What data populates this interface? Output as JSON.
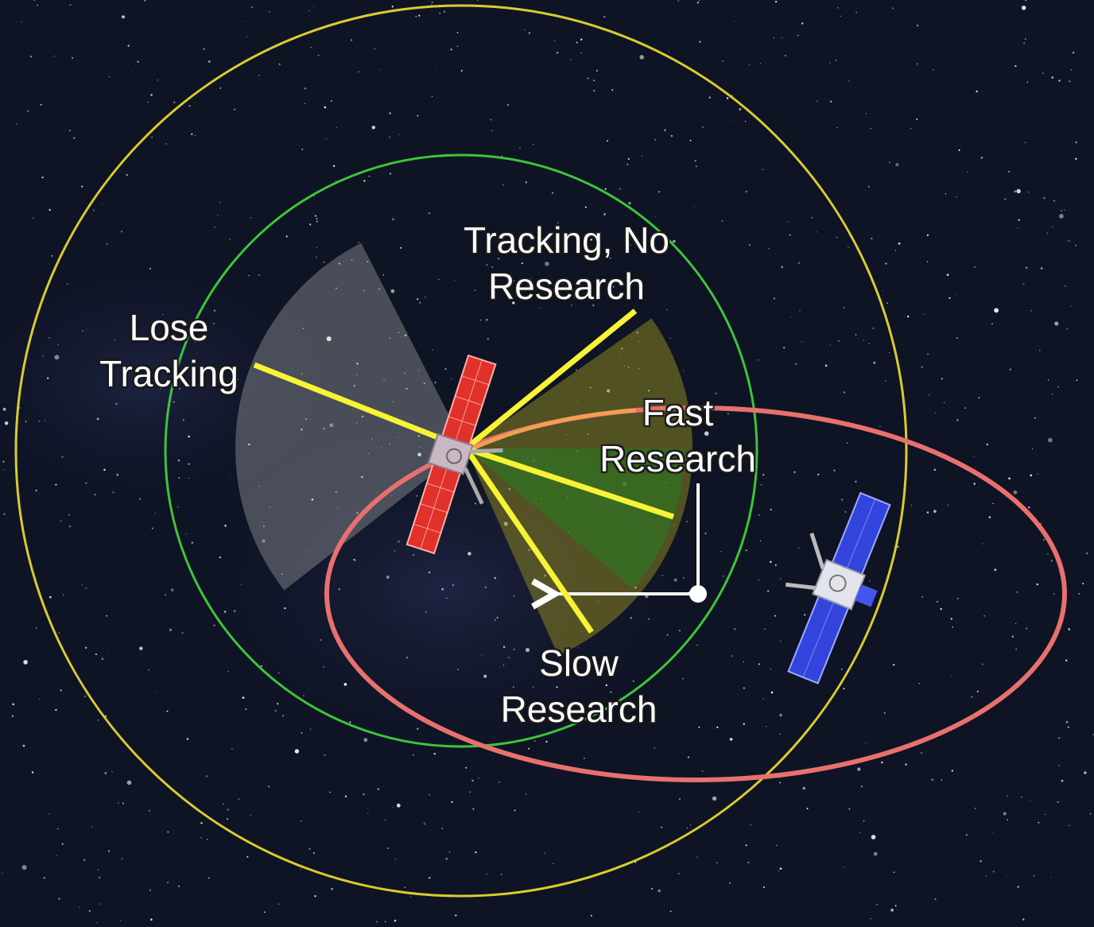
{
  "labels": {
    "tracking_no_research": {
      "line1": "Tracking, No",
      "line2": "Research"
    },
    "lose_tracking": {
      "line1": "Lose",
      "line2": "Tracking"
    },
    "fast_research": {
      "line1": "Fast",
      "line2": "Research"
    },
    "slow_research": {
      "line1": "Slow",
      "line2": "Research"
    }
  },
  "colors": {
    "space": "#0e1424",
    "outer_ring": "#d9cc2e",
    "inner_ring": "#3ec43a",
    "orbit_path": "#e8706d",
    "pointer_line": "#f7f335",
    "lose_tracking_zone": "#c8c8c8",
    "slow_research_zone": "#8a8420",
    "fast_research_zone": "#2a7a22",
    "player_panel": "#e0312a",
    "target_panel": "#3344dd"
  },
  "icons": {
    "player_satellite": "satellite-red-panels",
    "target_satellite": "satellite-blue-panels"
  }
}
